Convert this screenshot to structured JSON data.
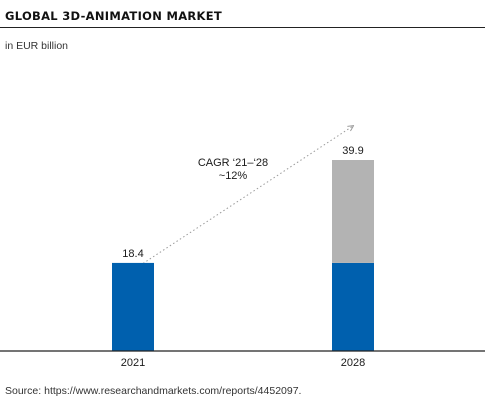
{
  "title": "GLOBAL 3D-ANIMATION MARKET",
  "unit_label": "in EUR billion",
  "source": "Source: https://www.researchandmarkets.com/reports/4452097.",
  "annotation": {
    "line1": "CAGR ‘21–‘28",
    "line2": "~12%"
  },
  "colors": {
    "base": "#0060ae",
    "growth": "#b3b3b3",
    "axis": "#222222",
    "trend": "#9a9a9a"
  },
  "chart_data": {
    "type": "bar",
    "stacked": true,
    "categories": [
      "2021",
      "2028"
    ],
    "series": [
      {
        "values": [
          18.4,
          18.4
        ]
      },
      {
        "values": [
          0,
          21.5
        ]
      }
    ],
    "totals": [
      18.4,
      39.9
    ],
    "data_labels": [
      "18.4",
      "39.9"
    ],
    "ylim": [
      0,
      39.9
    ],
    "grid": false,
    "legend": "none"
  }
}
